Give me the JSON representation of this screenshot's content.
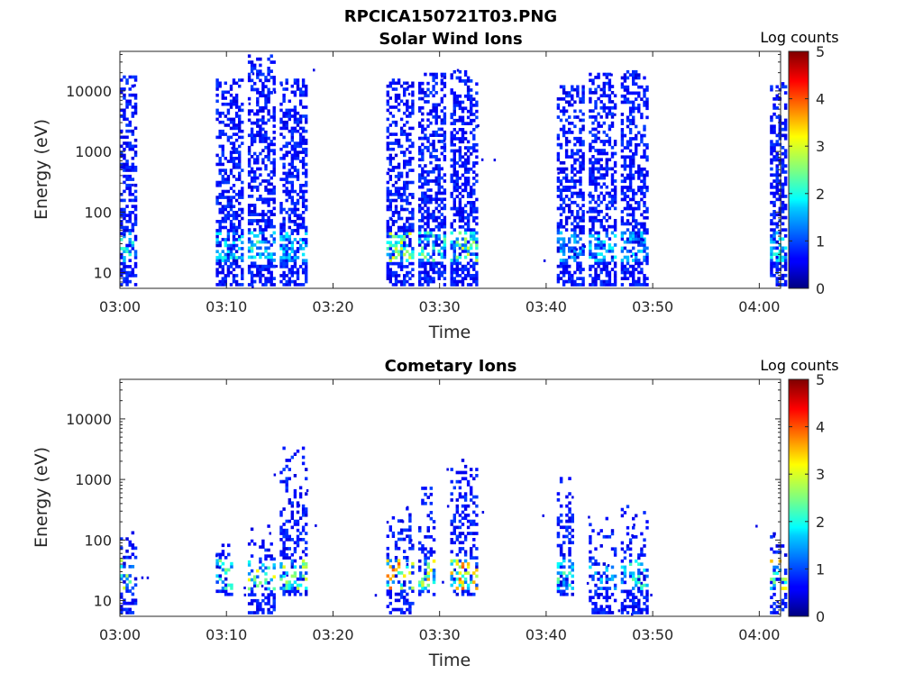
{
  "figure": {
    "title": "RPCICA150721T03.PNG"
  },
  "colorbar": {
    "label": "Log counts",
    "range": [
      0,
      5
    ],
    "ticks": [
      "0",
      "1",
      "2",
      "3",
      "4",
      "5"
    ],
    "colormap": "jet"
  },
  "chart_data": [
    {
      "type": "heatmap",
      "title": "Solar Wind Ions",
      "xlabel": "Time",
      "ylabel": "Energy (eV)",
      "yscale": "log",
      "xlim_minutes_after_0300": [
        0,
        62
      ],
      "ylim": [
        5.5,
        45000
      ],
      "xticks": [
        "03:00",
        "03:10",
        "03:20",
        "03:30",
        "03:40",
        "03:50",
        "04:00"
      ],
      "yticks": [
        "10",
        "100",
        "1000",
        "10000"
      ],
      "bursts": [
        {
          "start": "03:00",
          "end": "03:01",
          "emin": 6,
          "emax": 18000,
          "peak_log_counts": 1.8
        },
        {
          "start": "03:09",
          "end": "03:11",
          "emin": 6,
          "emax": 16000,
          "peak_log_counts": 1.7
        },
        {
          "start": "03:12",
          "end": "03:14",
          "emin": 6,
          "emax": 40000,
          "peak_log_counts": 2.0
        },
        {
          "start": "03:15",
          "end": "03:17",
          "emin": 6,
          "emax": 16000,
          "peak_log_counts": 1.5
        },
        {
          "start": "03:25",
          "end": "03:27",
          "emin": 6,
          "emax": 16000,
          "peak_log_counts": 2.8
        },
        {
          "start": "03:28",
          "end": "03:30",
          "emin": 6,
          "emax": 20000,
          "peak_log_counts": 2.2
        },
        {
          "start": "03:31",
          "end": "03:33",
          "emin": 6,
          "emax": 22000,
          "peak_log_counts": 2.6
        },
        {
          "start": "03:41",
          "end": "03:43",
          "emin": 6,
          "emax": 14000,
          "peak_log_counts": 1.3
        },
        {
          "start": "03:44",
          "end": "03:46",
          "emin": 6,
          "emax": 20000,
          "peak_log_counts": 1.6
        },
        {
          "start": "03:47",
          "end": "03:49",
          "emin": 6,
          "emax": 22000,
          "peak_log_counts": 1.4
        },
        {
          "start": "04:01",
          "end": "04:02",
          "emin": 6,
          "emax": 14000,
          "peak_log_counts": 1.8
        }
      ]
    },
    {
      "type": "heatmap",
      "title": "Cometary Ions",
      "xlabel": "Time",
      "ylabel": "Energy (eV)",
      "yscale": "log",
      "xlim_minutes_after_0300": [
        0,
        62
      ],
      "ylim": [
        5.5,
        45000
      ],
      "xticks": [
        "03:00",
        "03:10",
        "03:20",
        "03:30",
        "03:40",
        "03:50",
        "04:00"
      ],
      "yticks": [
        "10",
        "100",
        "1000",
        "10000"
      ],
      "bursts": [
        {
          "start": "03:00",
          "end": "03:01",
          "emin": 6,
          "emax": 140,
          "peak_log_counts": 2.6
        },
        {
          "start": "03:09",
          "end": "03:10",
          "emin": 12,
          "emax": 110,
          "peak_log_counts": 2.2
        },
        {
          "start": "03:12",
          "end": "03:14",
          "emin": 6,
          "emax": 180,
          "peak_log_counts": 3.0
        },
        {
          "start": "03:15",
          "end": "03:17",
          "emin": 12,
          "emax": 3500,
          "peak_log_counts": 2.6
        },
        {
          "start": "03:25",
          "end": "03:27",
          "emin": 6,
          "emax": 350,
          "peak_log_counts": 3.6
        },
        {
          "start": "03:28",
          "end": "03:29",
          "emin": 12,
          "emax": 760,
          "peak_log_counts": 3.2
        },
        {
          "start": "03:31",
          "end": "03:33",
          "emin": 12,
          "emax": 2200,
          "peak_log_counts": 3.6
        },
        {
          "start": "03:41",
          "end": "03:42",
          "emin": 12,
          "emax": 1100,
          "peak_log_counts": 2.0
        },
        {
          "start": "03:44",
          "end": "03:46",
          "emin": 6,
          "emax": 270,
          "peak_log_counts": 1.4
        },
        {
          "start": "03:47",
          "end": "03:49",
          "emin": 6,
          "emax": 380,
          "peak_log_counts": 2.0
        },
        {
          "start": "04:01",
          "end": "04:02",
          "emin": 6,
          "emax": 190,
          "peak_log_counts": 3.2
        }
      ]
    }
  ]
}
